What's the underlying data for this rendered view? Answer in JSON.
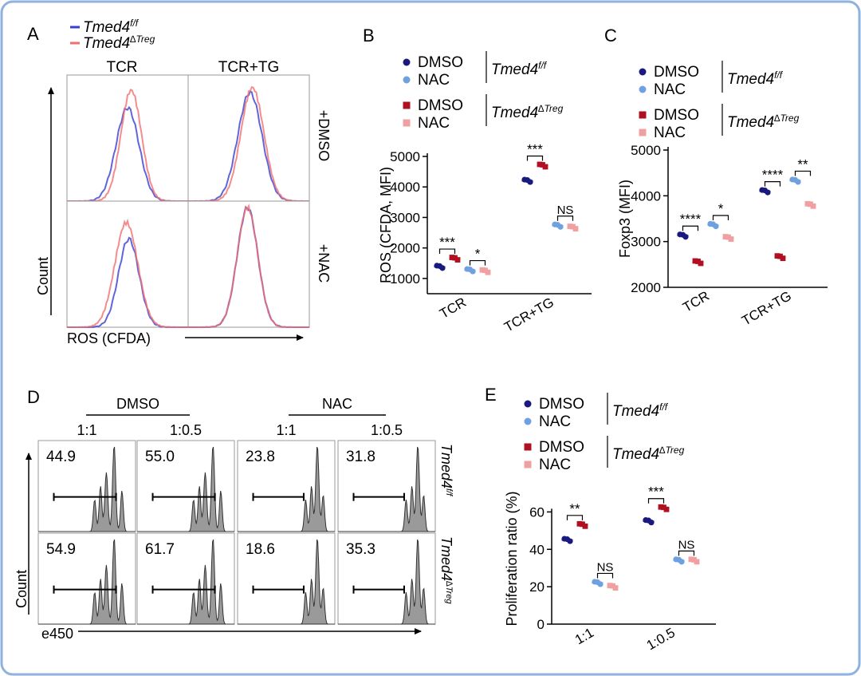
{
  "colors": {
    "frame": "#8fb2de",
    "blue": "#3a3fd0",
    "red": "#f07070",
    "dmso_ff": "#1a1a7e",
    "nac_ff": "#6fa0e0",
    "dmso_ko": "#b01020",
    "nac_ko": "#f0a0a0",
    "hist_fill": "#9a9a9a"
  },
  "panel_a": {
    "letter": "A",
    "legend": [
      {
        "base": "Tmed4",
        "sup": "f/f",
        "color": "blue"
      },
      {
        "base": "Tmed4",
        "sup": "∆Treg",
        "color": "red"
      }
    ],
    "col_labels": [
      "TCR",
      "TCR+TG"
    ],
    "row_labels": [
      "+DMSO",
      "+NAC"
    ],
    "ylabel": "Count",
    "xlabel": "ROS (CFDA)"
  },
  "legend_groups": {
    "ff": {
      "base": "Tmed4",
      "sup": "f/f"
    },
    "ko": {
      "base": "Tmed4",
      "sup": "∆Treg"
    },
    "items": [
      "DMSO",
      "NAC"
    ]
  },
  "chart_data": [
    {
      "panel": "B",
      "type": "scatter",
      "ylabel": "ROS (CFDA, MFI)",
      "categories": [
        "TCR",
        "TCR+TG"
      ],
      "yticks": [
        1000,
        2000,
        3000,
        4000,
        5000
      ],
      "ylim": [
        500,
        5000
      ],
      "series": [
        {
          "name": "DMSO Tmed4 f/f",
          "values": [
            1380,
            4200
          ]
        },
        {
          "name": "DMSO Tmed4 ∆Treg",
          "values": [
            1650,
            4700
          ]
        },
        {
          "name": "NAC Tmed4 f/f",
          "values": [
            1270,
            2730
          ]
        },
        {
          "name": "NAC Tmed4 ∆Treg",
          "values": [
            1240,
            2670
          ]
        }
      ],
      "annotations": [
        {
          "label": "***",
          "category": 0,
          "pair": "dmso"
        },
        {
          "label": "*",
          "category": 0,
          "pair": "nac"
        },
        {
          "label": "***",
          "category": 1,
          "pair": "dmso"
        },
        {
          "label": "NS",
          "category": 1,
          "pair": "nac"
        }
      ]
    },
    {
      "panel": "C",
      "type": "scatter",
      "ylabel": "Foxp3 (MFI)",
      "categories": [
        "TCR",
        "TCR+TG"
      ],
      "yticks": [
        2000,
        3000,
        4000,
        5000
      ],
      "ylim": [
        2000,
        5000
      ],
      "series": [
        {
          "name": "DMSO Tmed4 f/f",
          "values": [
            3130,
            4100
          ]
        },
        {
          "name": "DMSO Tmed4 ∆Treg",
          "values": [
            2550,
            2660
          ]
        },
        {
          "name": "NAC Tmed4 f/f",
          "values": [
            3360,
            4330
          ]
        },
        {
          "name": "NAC Tmed4 ∆Treg",
          "values": [
            3080,
            3800
          ]
        }
      ],
      "annotations": [
        {
          "label": "****",
          "category": 0,
          "pair": "dmso"
        },
        {
          "label": "*",
          "category": 0,
          "pair": "nac"
        },
        {
          "label": "****",
          "category": 1,
          "pair": "dmso"
        },
        {
          "label": "**",
          "category": 1,
          "pair": "nac"
        }
      ]
    },
    {
      "panel": "E",
      "type": "scatter",
      "ylabel": "Proliferation ratio (%)",
      "categories": [
        "1:1",
        "1:0.5"
      ],
      "yticks": [
        0,
        20,
        40,
        60
      ],
      "ylim": [
        0,
        70
      ],
      "series": [
        {
          "name": "DMSO Tmed4 f/f",
          "values": [
            45,
            55
          ]
        },
        {
          "name": "DMSO Tmed4 ∆Treg",
          "values": [
            53,
            62
          ]
        },
        {
          "name": "NAC Tmed4 f/f",
          "values": [
            22,
            34
          ]
        },
        {
          "name": "NAC Tmed4 ∆Treg",
          "values": [
            20,
            34
          ]
        }
      ],
      "annotations": [
        {
          "label": "**",
          "category": 0,
          "pair": "dmso"
        },
        {
          "label": "NS",
          "category": 0,
          "pair": "nac"
        },
        {
          "label": "***",
          "category": 1,
          "pair": "dmso"
        },
        {
          "label": "NS",
          "category": 1,
          "pair": "nac"
        }
      ]
    }
  ],
  "panel_d": {
    "letter": "D",
    "group_labels": [
      "DMSO",
      "NAC"
    ],
    "ratio_labels": [
      "1:1",
      "1:0.5",
      "1:1",
      "1:0.5"
    ],
    "row_labels": [
      {
        "base": "Tmed4",
        "sup": "f/f"
      },
      {
        "base": "Tmed4",
        "sup": "∆Treg"
      }
    ],
    "values": [
      [
        "44.9",
        "55.0",
        "23.8",
        "31.8"
      ],
      [
        "54.9",
        "61.7",
        "18.6",
        "35.3"
      ]
    ],
    "ylabel": "Count",
    "xlabel": "e450"
  }
}
